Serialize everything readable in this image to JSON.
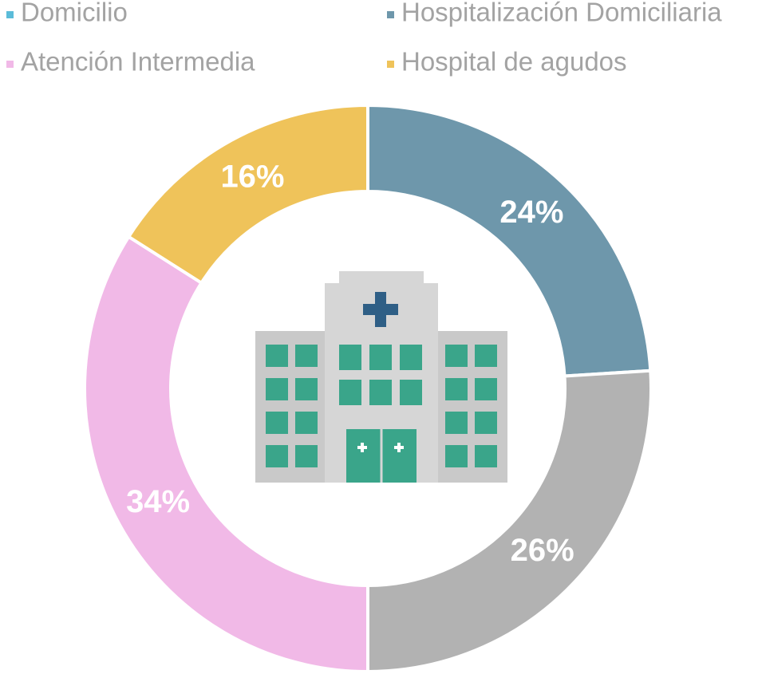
{
  "chart_data": {
    "type": "donut",
    "categories": [
      "Hospitalización Domiciliaria",
      "Domicilio",
      "Atención Intermedia",
      "Hospital de agudos"
    ],
    "values": [
      24,
      26,
      34,
      16
    ],
    "value_labels": [
      "24%",
      "26%",
      "34%",
      "16%"
    ],
    "colors": [
      "#6e97ab",
      "#b2b2b2",
      "#f1b9e7",
      "#efc35a"
    ],
    "legend_colors": [
      "#6e97ab",
      "#5bbcd9",
      "#f1b9e7",
      "#efc35a"
    ]
  }
}
